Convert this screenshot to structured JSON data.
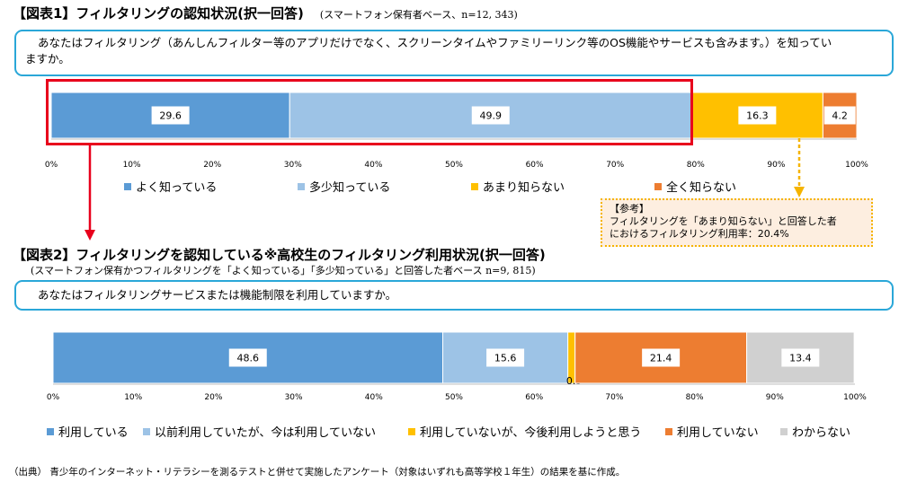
{
  "fig1": {
    "title": "【図表1】フィルタリングの認知状況(択一回答)",
    "sample": "(スマートフォン保有者ベース、n=12, 343)",
    "question_line1": "あなたはフィルタリング（あんしんフィルター等のアプリだけでなく、スクリーンタイムやファミリーリンク等のOS機能やサービスも含みます。）を知ってい",
    "question_line2": "ますか。"
  },
  "fig2": {
    "title": "【図表2】フィルタリングを認知している※高校生のフィルタリング利用状況(択一回答)",
    "sample": "(スマートフォン保有かつフィルタリングを「よく知っている」「多少知っている」と回答した者ベース n=9, 815)",
    "question": "あなたはフィルタリングサービスまたは機能制限を利用していますか。"
  },
  "note": {
    "heading": "【参考】",
    "line1": "フィルタリングを「あまり知らない」と回答した者",
    "line2": "におけるフィルタリング利用率：20.4%"
  },
  "source": "（出典） 青少年のインターネット・リテラシーを測るテストと併せて実施したアンケート（対象はいずれも高等学校１年生）の結果を基に作成。",
  "chart_data": [
    {
      "type": "bar",
      "orientation": "horizontal-stacked-100",
      "xlim": [
        0,
        100
      ],
      "x_ticks": [
        "0%",
        "10%",
        "20%",
        "30%",
        "40%",
        "50%",
        "60%",
        "70%",
        "80%",
        "90%",
        "100%"
      ],
      "legend_position": "bottom",
      "series": [
        {
          "name": "よく知っている",
          "value": 29.6,
          "label": "29.6",
          "color": "#5b9bd5"
        },
        {
          "name": "多少知っている",
          "value": 49.9,
          "label": "49.9",
          "color": "#9dc3e6"
        },
        {
          "name": "あまり知らない",
          "value": 16.3,
          "label": "16.3",
          "color": "#ffc000"
        },
        {
          "name": "全く知らない",
          "value": 4.2,
          "label": "4.2",
          "color": "#ed7d31"
        }
      ]
    },
    {
      "type": "bar",
      "orientation": "horizontal-stacked-100",
      "xlim": [
        0,
        100
      ],
      "x_ticks": [
        "0%",
        "10%",
        "20%",
        "30%",
        "40%",
        "50%",
        "60%",
        "70%",
        "80%",
        "90%",
        "100%"
      ],
      "legend_position": "bottom",
      "series": [
        {
          "name": "利用している",
          "value": 48.6,
          "label": "48.6",
          "color": "#5b9bd5"
        },
        {
          "name": "以前利用していたが、今は利用していない",
          "value": 15.6,
          "label": "15.6",
          "color": "#9dc3e6"
        },
        {
          "name": "利用していないが、今後利用しようと思う",
          "value": 0.9,
          "label": "0.9",
          "color": "#ffc000"
        },
        {
          "name": "利用していない",
          "value": 21.4,
          "label": "21.4",
          "color": "#ed7d31"
        },
        {
          "name": "わからない",
          "value": 13.4,
          "label": "13.4",
          "color": "#d0d0d0"
        }
      ]
    }
  ]
}
